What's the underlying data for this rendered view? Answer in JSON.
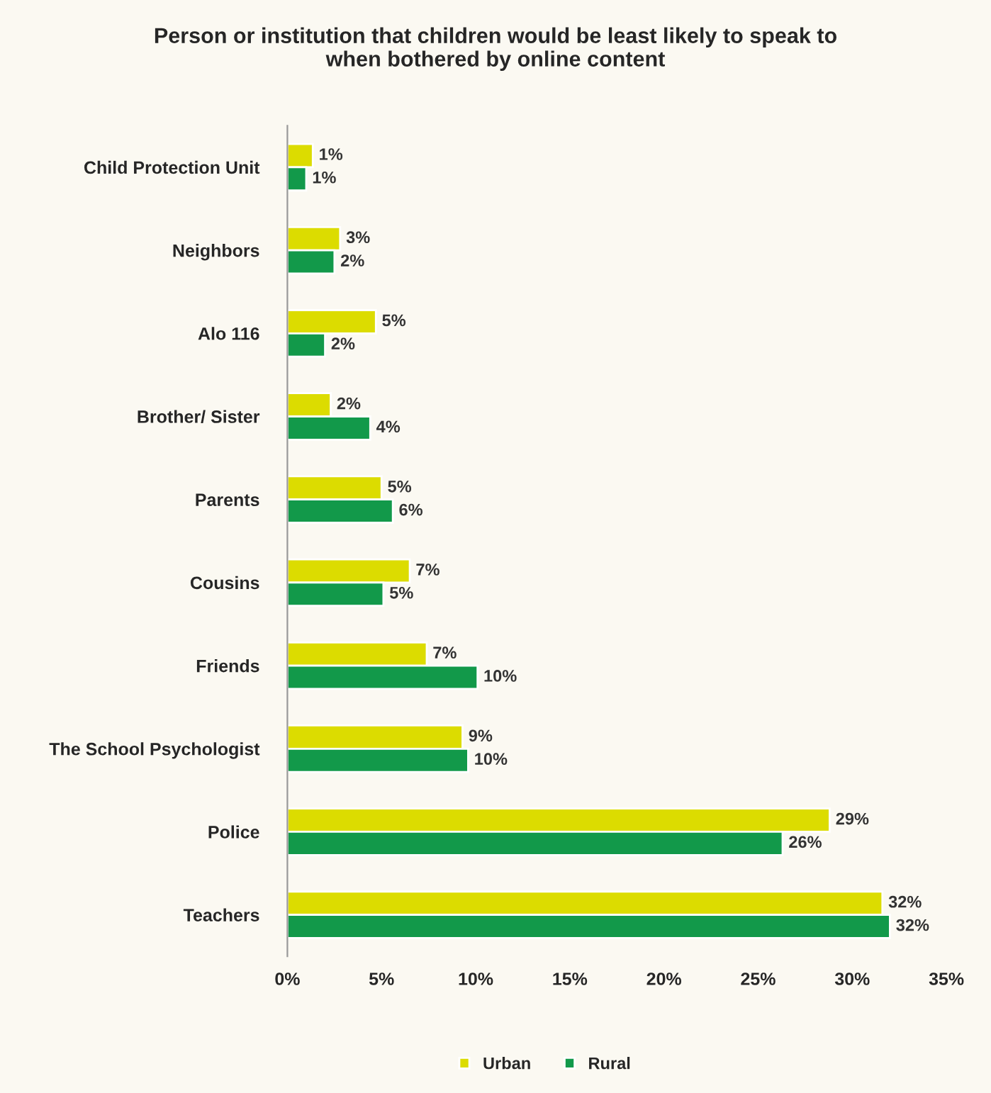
{
  "chart_data": {
    "type": "bar",
    "orientation": "horizontal",
    "title": "Person or institution that children would be least likely to speak to\nwhen bothered by online content",
    "categories": [
      "Child Protection Unit",
      "Neighbors",
      "Alo 116",
      "Brother/ Sister",
      "Parents",
      "Cousins",
      "Friends",
      "The School Psychologist",
      "Police",
      "Teachers"
    ],
    "series": [
      {
        "name": "Urban",
        "color": "#dcdc00",
        "values": [
          1.35,
          2.8,
          4.7,
          2.3,
          5.0,
          6.5,
          7.4,
          9.3,
          28.8,
          31.6
        ],
        "value_labels": [
          "1%",
          "3%",
          "5%",
          "2%",
          "5%",
          "7%",
          "7%",
          "9%",
          "29%",
          "32%"
        ]
      },
      {
        "name": "Rural",
        "color": "#12994a",
        "values": [
          1.0,
          2.5,
          2.0,
          4.4,
          5.6,
          5.1,
          10.1,
          9.6,
          26.3,
          32.0
        ],
        "value_labels": [
          "1%",
          "2%",
          "2%",
          "4%",
          "6%",
          "5%",
          "10%",
          "10%",
          "26%",
          "32%"
        ]
      }
    ],
    "xlim": [
      0,
      35
    ],
    "xticks": [
      {
        "value": 0,
        "label": "0%"
      },
      {
        "value": 5,
        "label": "5%"
      },
      {
        "value": 10,
        "label": "10%"
      },
      {
        "value": 15,
        "label": "15%"
      },
      {
        "value": 20,
        "label": "20%"
      },
      {
        "value": 25,
        "label": "25%"
      },
      {
        "value": 30,
        "label": "30%"
      },
      {
        "value": 35,
        "label": "35%"
      }
    ],
    "grid": false,
    "legend": "bottom"
  }
}
